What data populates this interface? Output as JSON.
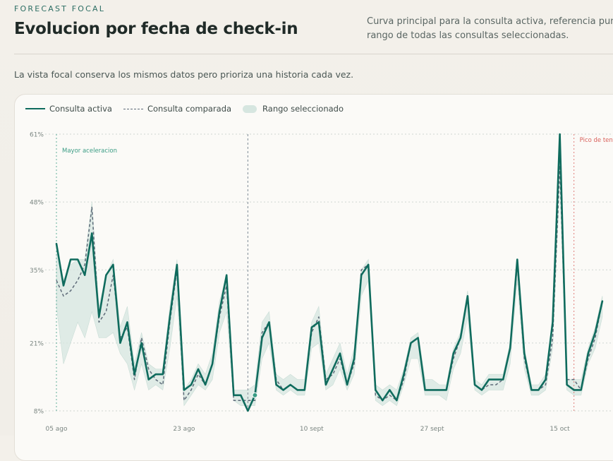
{
  "header": {
    "eyebrow": "FORECAST FOCAL",
    "title": "Evolucion por fecha de check-in",
    "description_line1": "Curva principal para la consulta activa, referencia punte",
    "description_line2": "rango de todas las consultas seleccionadas.",
    "subtitle": "La vista focal conserva los mismos datos pero prioriza una historia cada vez."
  },
  "legend": {
    "active": "Consulta activa",
    "compared": "Consulta comparada",
    "range": "Rango seleccionado"
  },
  "colors": {
    "active": "#0f6b5d",
    "compared": "#5d6a78",
    "range_fill": "#d6e6e0",
    "accent_green": "#3a9c84",
    "accent_red": "#d9605b"
  },
  "chart_data": {
    "type": "line",
    "y_ticks": [
      "61%",
      "48%",
      "35%",
      "21%",
      "8%"
    ],
    "y_tick_values": [
      61,
      48,
      35,
      21,
      8
    ],
    "ylim": [
      8,
      61
    ],
    "x_tick_labels": [
      "05 ago",
      "23 ago",
      "10 sept",
      "27 sept",
      "15 oct"
    ],
    "x_tick_days": [
      0,
      18,
      36,
      53,
      71
    ],
    "grid": true,
    "annotations": [
      {
        "label": "Mayor aceleracion",
        "day": 0,
        "color": "green"
      },
      {
        "label": "Pico de tens",
        "day": 73,
        "color": "red"
      }
    ],
    "selection_marker_day": 27,
    "series": [
      {
        "name": "Consulta activa",
        "values": [
          40,
          32,
          37,
          37,
          34,
          42,
          26,
          34,
          36,
          21,
          25,
          15,
          21,
          14,
          15,
          15,
          26,
          36,
          12,
          13,
          16,
          13,
          17,
          27,
          34,
          11,
          11,
          8,
          11,
          22,
          25,
          13,
          12,
          13,
          12,
          12,
          24,
          25,
          13,
          16,
          19,
          13,
          18,
          34,
          36,
          12,
          10,
          12,
          10,
          15,
          21,
          22,
          12,
          12,
          12,
          12,
          19,
          22,
          30,
          13,
          12,
          14,
          14,
          14,
          20,
          37,
          19,
          12,
          12,
          14,
          25,
          61,
          13,
          12,
          12,
          19,
          23,
          29
        ]
      },
      {
        "name": "Consulta comparada",
        "values": [
          33,
          30,
          31,
          33,
          36,
          47,
          25,
          27,
          34,
          22,
          24,
          14,
          22,
          16,
          14,
          13,
          25,
          35,
          10,
          12,
          15,
          13,
          17,
          26,
          32,
          10,
          10,
          10,
          10,
          23,
          25,
          14,
          12,
          13,
          12,
          12,
          23,
          26,
          14,
          15,
          18,
          13,
          17,
          35,
          36,
          11,
          10,
          11,
          10,
          14,
          21,
          22,
          12,
          12,
          12,
          12,
          18,
          22,
          30,
          13,
          12,
          13,
          13,
          14,
          20,
          36,
          18,
          12,
          12,
          13,
          22,
          55,
          14,
          14,
          12,
          18,
          22,
          29
        ]
      }
    ],
    "range": {
      "low": [
        28,
        17,
        21,
        25,
        22,
        27,
        22,
        22,
        23,
        19,
        17,
        12,
        17,
        12,
        13,
        12,
        20,
        30,
        9,
        11,
        13,
        12,
        14,
        23,
        27,
        10,
        9,
        9,
        9,
        18,
        21,
        12,
        11,
        12,
        11,
        11,
        20,
        21,
        12,
        13,
        16,
        12,
        15,
        30,
        33,
        10,
        9,
        10,
        9,
        13,
        18,
        18,
        11,
        11,
        11,
        10,
        16,
        19,
        26,
        12,
        11,
        12,
        12,
        12,
        17,
        33,
        16,
        11,
        11,
        12,
        20,
        52,
        12,
        11,
        11,
        17,
        20,
        26
      ],
      "high": [
        40,
        33,
        36,
        37,
        37,
        48,
        28,
        34,
        37,
        24,
        28,
        17,
        23,
        17,
        16,
        16,
        28,
        37,
        12,
        14,
        17,
        15,
        19,
        29,
        34,
        12,
        12,
        12,
        13,
        25,
        27,
        15,
        14,
        15,
        14,
        14,
        25,
        28,
        15,
        18,
        21,
        15,
        20,
        35,
        37,
        13,
        12,
        13,
        12,
        16,
        22,
        23,
        14,
        14,
        13,
        13,
        20,
        23,
        31,
        14,
        13,
        15,
        15,
        15,
        21,
        37,
        20,
        13,
        13,
        15,
        25,
        60,
        14,
        14,
        14,
        20,
        24,
        30
      ]
    }
  }
}
